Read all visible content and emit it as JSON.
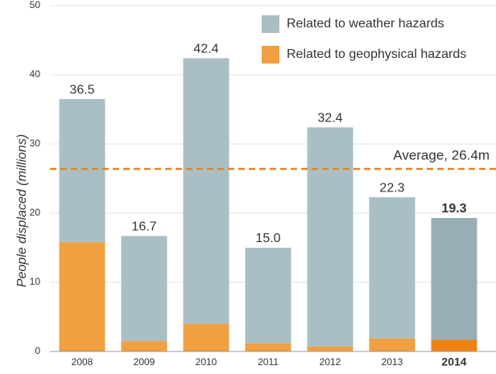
{
  "chart_data": {
    "type": "stacked_bar",
    "ylabel": "People displaced (millions)",
    "categories": [
      "2008",
      "2009",
      "2010",
      "2011",
      "2012",
      "2013",
      "2014"
    ],
    "series": [
      {
        "name": "Related to geophysical hazards",
        "color": "#f0a040",
        "highlight_color": "#ee8210",
        "values": [
          15.8,
          1.5,
          4.0,
          1.2,
          0.7,
          1.9,
          1.7
        ]
      },
      {
        "name": "Related to weather hazards",
        "color": "#a9bfc4",
        "highlight_color": "#97afb4",
        "values": [
          20.7,
          15.2,
          38.4,
          13.8,
          31.7,
          20.4,
          17.6
        ]
      }
    ],
    "totals": [
      36.5,
      16.7,
      42.4,
      15.0,
      32.4,
      22.3,
      19.3
    ],
    "total_labels": [
      "36.5",
      "16.7",
      "42.4",
      "15.0",
      "32.4",
      "22.3",
      "19.3"
    ],
    "highlight": "2014",
    "average": 26.4,
    "average_label": "Average, 26.4m",
    "average_color": "#ee8210",
    "ylim": [
      0,
      50
    ],
    "yticks": [
      0,
      10,
      20,
      30,
      40,
      50
    ],
    "grid": true
  }
}
